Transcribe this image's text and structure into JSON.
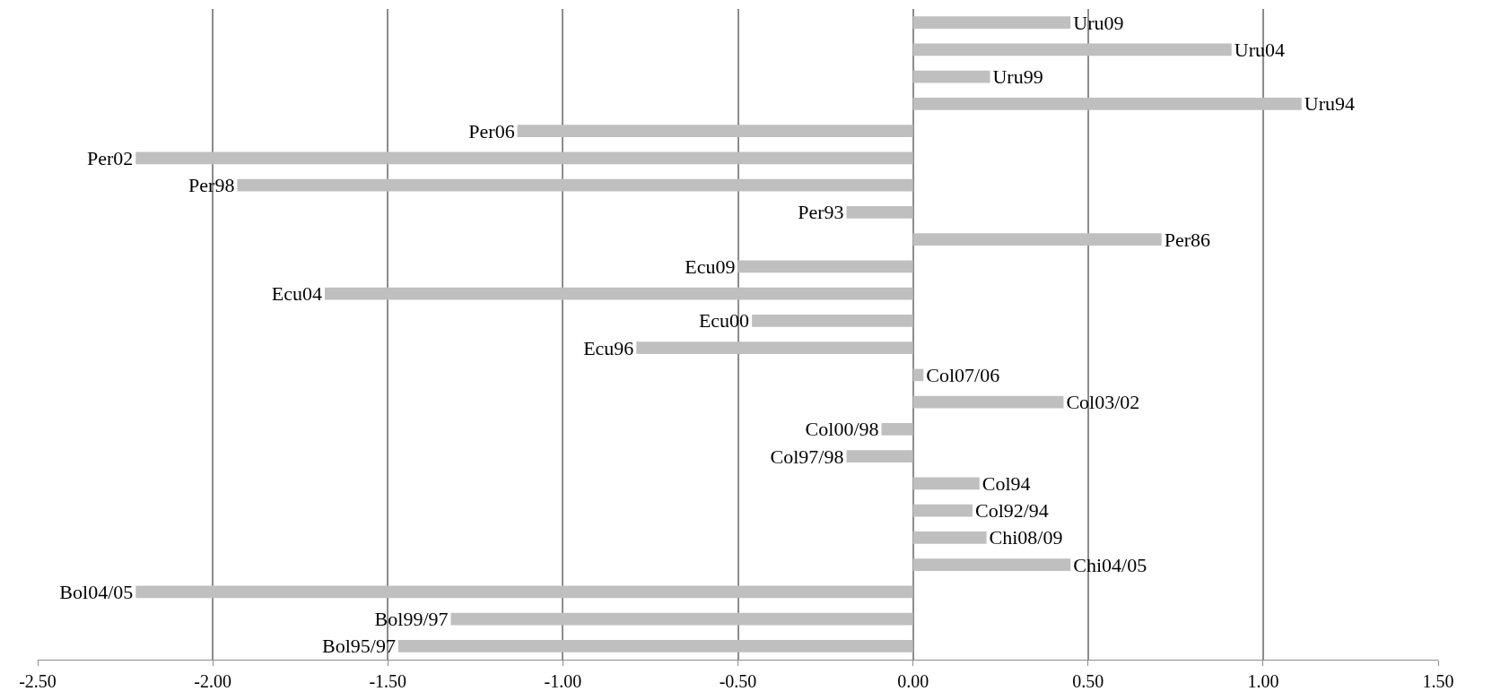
{
  "chart_data": {
    "type": "bar",
    "orientation": "horizontal",
    "categories": [
      "Uru09",
      "Uru04",
      "Uru99",
      "Uru94",
      "Per06",
      "Per02",
      "Per98",
      "Per93",
      "Per86",
      "Ecu09",
      "Ecu04",
      "Ecu00",
      "Ecu96",
      "Col07/06",
      "Col03/02",
      "Col00/98",
      "Col97/98",
      "Col94",
      "Col92/94",
      "Chi08/09",
      "Chi04/05",
      "Bol04/05",
      "Bol99/97",
      "Bol95/97"
    ],
    "values": [
      0.45,
      0.91,
      0.22,
      1.11,
      -1.13,
      -2.22,
      -1.93,
      -0.19,
      0.71,
      -0.5,
      -1.68,
      -0.46,
      -0.79,
      0.03,
      0.43,
      -0.09,
      -0.19,
      0.19,
      0.17,
      0.21,
      0.45,
      -2.22,
      -1.32,
      -1.47
    ],
    "color": "#bfbfbf",
    "xlim": [
      -2.5,
      1.5
    ],
    "xticks": [
      {
        "value": -2.5,
        "label": "-2.50"
      },
      {
        "value": -2.0,
        "label": "-2.00"
      },
      {
        "value": -1.5,
        "label": "-1.50"
      },
      {
        "value": -1.0,
        "label": "-1.00"
      },
      {
        "value": -0.5,
        "label": "-0.50"
      },
      {
        "value": 0.0,
        "label": "0.00"
      },
      {
        "value": 0.5,
        "label": "0.50"
      },
      {
        "value": 1.0,
        "label": "1.00"
      },
      {
        "value": 1.5,
        "label": "1.50"
      }
    ],
    "grid": "x"
  }
}
